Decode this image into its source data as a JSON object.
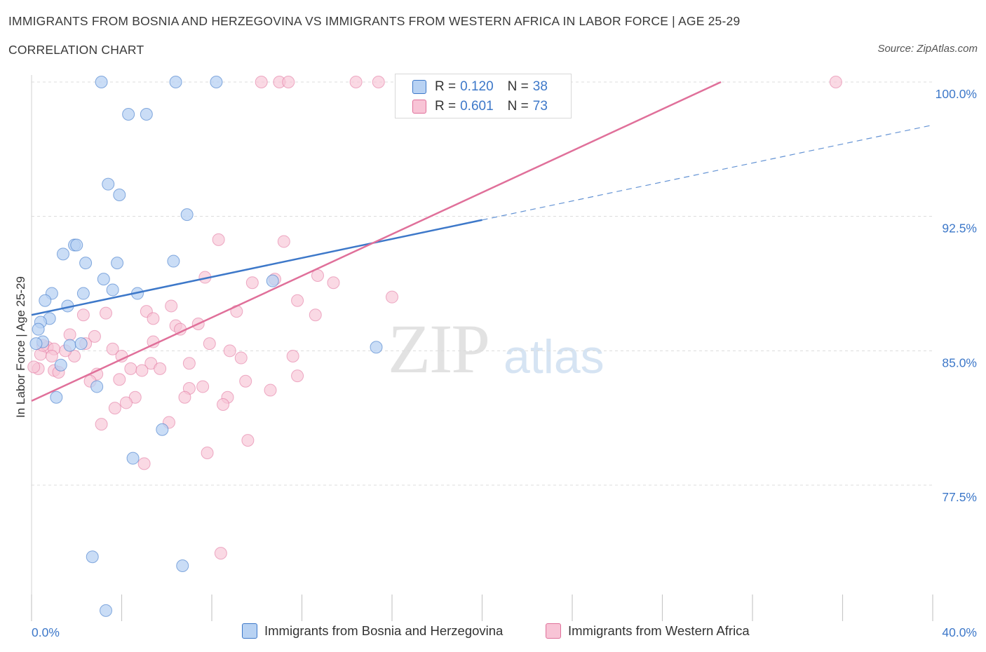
{
  "title": "IMMIGRANTS FROM BOSNIA AND HERZEGOVINA VS IMMIGRANTS FROM WESTERN AFRICA IN LABOR FORCE | AGE 25-29",
  "subtitle": "CORRELATION CHART",
  "source": "Source: ZipAtlas.com",
  "watermark": {
    "zip": "ZIP",
    "atlas": "atlas"
  },
  "legend": {
    "series1": {
      "r_label": "R =",
      "r_value": "0.120",
      "n_label": "N =",
      "n_value": "38"
    },
    "series2": {
      "r_label": "R =",
      "r_value": "0.601",
      "n_label": "N =",
      "n_value": "73"
    }
  },
  "colors": {
    "blue": "#3d78c9",
    "blue_fill": "#b8d2f3",
    "pink": "#e0709a",
    "pink_fill": "#f8c4d6",
    "grid": "#dcdcdc"
  },
  "chart_data": {
    "type": "scatter",
    "xlabel": "",
    "ylabel": "In Labor Force | Age 25-29",
    "xlim": [
      0,
      40
    ],
    "ylim": [
      70.2,
      100.6
    ],
    "x_tick_labels": [
      {
        "value": 0,
        "label": "0.0%"
      },
      {
        "value": 40,
        "label": "40.0%"
      }
    ],
    "y_ticks": [
      {
        "value": 77.5,
        "label": "77.5%"
      },
      {
        "value": 85,
        "label": "85.0%"
      },
      {
        "value": 92.5,
        "label": "92.5%"
      },
      {
        "value": 100,
        "label": "100.0%"
      }
    ],
    "grid": true,
    "series": [
      {
        "name": "Immigrants from Bosnia and Herzegovina",
        "color": "#3d78c9",
        "points": [
          [
            3.1,
            100
          ],
          [
            6.4,
            100
          ],
          [
            8.2,
            100
          ],
          [
            4.3,
            98.2
          ],
          [
            5.1,
            98.2
          ],
          [
            3.4,
            94.3
          ],
          [
            3.9,
            93.7
          ],
          [
            6.9,
            92.6
          ],
          [
            1.9,
            90.9
          ],
          [
            2.0,
            90.9
          ],
          [
            1.4,
            90.4
          ],
          [
            2.4,
            89.9
          ],
          [
            3.8,
            89.9
          ],
          [
            6.3,
            90.0
          ],
          [
            3.2,
            89.0
          ],
          [
            10.7,
            88.9
          ],
          [
            3.6,
            88.4
          ],
          [
            0.9,
            88.2
          ],
          [
            2.3,
            88.2
          ],
          [
            4.7,
            88.2
          ],
          [
            0.6,
            87.8
          ],
          [
            1.6,
            87.5
          ],
          [
            0.8,
            86.8
          ],
          [
            0.4,
            86.6
          ],
          [
            0.3,
            86.2
          ],
          [
            0.5,
            85.5
          ],
          [
            1.7,
            85.3
          ],
          [
            2.2,
            85.4
          ],
          [
            15.3,
            85.2
          ],
          [
            1.3,
            84.2
          ],
          [
            2.9,
            83.0
          ],
          [
            1.1,
            82.4
          ],
          [
            5.8,
            80.6
          ],
          [
            4.5,
            79.0
          ],
          [
            2.7,
            73.5
          ],
          [
            6.7,
            73.0
          ],
          [
            3.3,
            70.5
          ],
          [
            0.2,
            85.4
          ]
        ],
        "trend": {
          "x0": 0,
          "y0": 87.0,
          "x1": 20,
          "y1": 92.3,
          "x_dash_end": 40,
          "y_dash_end": 97.6
        }
      },
      {
        "name": "Immigrants from Western Africa",
        "color": "#e0709a",
        "points": [
          [
            10.2,
            100
          ],
          [
            11.0,
            100
          ],
          [
            11.4,
            100
          ],
          [
            14.4,
            100
          ],
          [
            15.4,
            100
          ],
          [
            18.8,
            100
          ],
          [
            22.2,
            100
          ],
          [
            35.7,
            100
          ],
          [
            8.3,
            91.2
          ],
          [
            11.2,
            91.1
          ],
          [
            7.7,
            89.1
          ],
          [
            9.8,
            88.8
          ],
          [
            10.8,
            89.0
          ],
          [
            12.7,
            89.2
          ],
          [
            13.4,
            88.8
          ],
          [
            16.0,
            88.0
          ],
          [
            11.8,
            87.8
          ],
          [
            6.2,
            87.5
          ],
          [
            5.1,
            87.2
          ],
          [
            3.3,
            87.1
          ],
          [
            9.1,
            87.2
          ],
          [
            12.6,
            87.0
          ],
          [
            2.3,
            87.0
          ],
          [
            5.4,
            86.8
          ],
          [
            6.4,
            86.4
          ],
          [
            6.6,
            86.2
          ],
          [
            7.4,
            86.5
          ],
          [
            1.7,
            85.9
          ],
          [
            2.8,
            85.8
          ],
          [
            5.4,
            85.5
          ],
          [
            0.7,
            85.2
          ],
          [
            1.0,
            85.1
          ],
          [
            2.4,
            85.4
          ],
          [
            3.6,
            85.1
          ],
          [
            7.9,
            85.4
          ],
          [
            8.8,
            85.0
          ],
          [
            0.4,
            84.8
          ],
          [
            0.9,
            84.7
          ],
          [
            1.9,
            84.7
          ],
          [
            4.0,
            84.7
          ],
          [
            9.3,
            84.6
          ],
          [
            11.6,
            84.7
          ],
          [
            5.3,
            84.3
          ],
          [
            7.0,
            84.3
          ],
          [
            0.3,
            84.0
          ],
          [
            1.0,
            83.9
          ],
          [
            1.2,
            83.8
          ],
          [
            2.9,
            83.7
          ],
          [
            4.4,
            84.0
          ],
          [
            4.9,
            83.9
          ],
          [
            5.7,
            84.0
          ],
          [
            3.9,
            83.4
          ],
          [
            2.6,
            83.3
          ],
          [
            9.5,
            83.3
          ],
          [
            11.8,
            83.6
          ],
          [
            7.0,
            82.9
          ],
          [
            7.6,
            83.0
          ],
          [
            10.6,
            82.8
          ],
          [
            4.6,
            82.4
          ],
          [
            6.8,
            82.4
          ],
          [
            8.7,
            82.4
          ],
          [
            4.2,
            82.1
          ],
          [
            3.7,
            81.8
          ],
          [
            8.5,
            82.0
          ],
          [
            6.1,
            81.0
          ],
          [
            3.1,
            80.9
          ],
          [
            9.6,
            80.0
          ],
          [
            7.8,
            79.3
          ],
          [
            5.0,
            78.7
          ],
          [
            8.4,
            73.7
          ],
          [
            0.1,
            84.1
          ],
          [
            0.5,
            85.3
          ],
          [
            1.5,
            85.0
          ]
        ],
        "trend": {
          "x0": 0,
          "y0": 82.2,
          "x1": 30.6,
          "y1": 100.0
        }
      }
    ]
  }
}
